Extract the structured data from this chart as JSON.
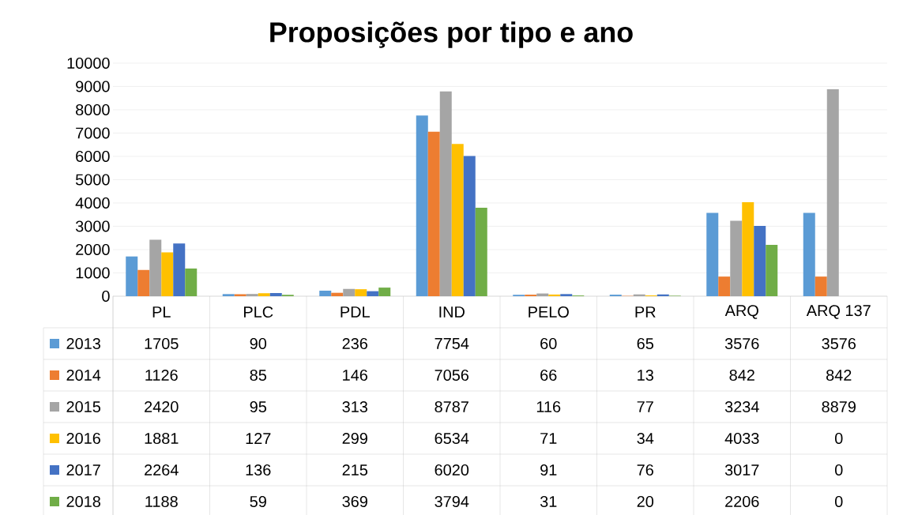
{
  "chart_data": {
    "type": "bar",
    "title": "Proposições por tipo e ano",
    "categories": [
      "PL",
      "PLC",
      "PDL",
      "IND",
      "PELO",
      "PR",
      "ARQ",
      "ARQ 137"
    ],
    "series": [
      {
        "name": "2013",
        "color": "#5b9bd5",
        "values": [
          1705,
          90,
          236,
          7754,
          60,
          65,
          3576,
          3576
        ]
      },
      {
        "name": "2014",
        "color": "#ed7d31",
        "values": [
          1126,
          85,
          146,
          7056,
          66,
          13,
          842,
          842
        ]
      },
      {
        "name": "2015",
        "color": "#a5a5a5",
        "values": [
          2420,
          95,
          313,
          8787,
          116,
          77,
          3234,
          8879
        ]
      },
      {
        "name": "2016",
        "color": "#ffc000",
        "values": [
          1881,
          127,
          299,
          6534,
          71,
          34,
          4033,
          0
        ]
      },
      {
        "name": "2017",
        "color": "#4472c4",
        "values": [
          2264,
          136,
          215,
          6020,
          91,
          76,
          3017,
          0
        ]
      },
      {
        "name": "2018",
        "color": "#70ad47",
        "values": [
          1188,
          59,
          369,
          3794,
          31,
          20,
          2206,
          0
        ]
      }
    ],
    "ylim": [
      0,
      10000
    ],
    "yticks": [
      0,
      1000,
      2000,
      3000,
      4000,
      5000,
      6000,
      7000,
      8000,
      9000,
      10000
    ],
    "grid": "y",
    "legend": "bottom left",
    "data_labels": true
  }
}
